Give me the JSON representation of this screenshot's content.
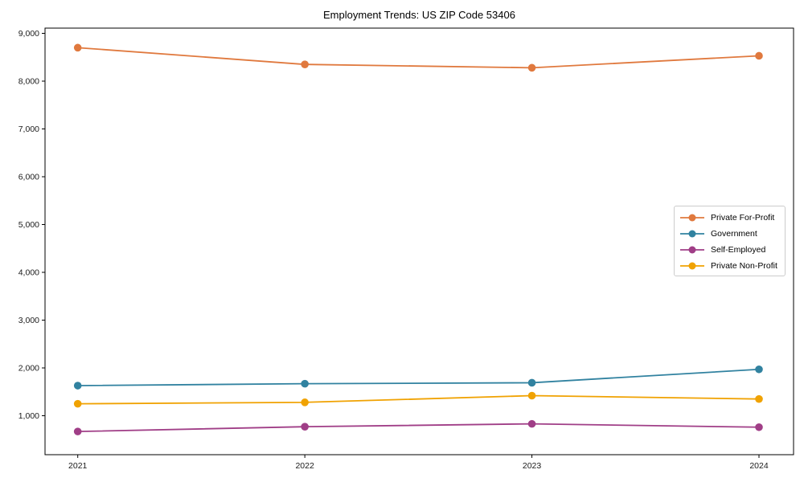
{
  "chart_data": {
    "type": "line",
    "title": "Employment Trends: US ZIP Code 53406",
    "xlabel": "",
    "ylabel": "",
    "x": [
      2021,
      2022,
      2023,
      2024
    ],
    "series": [
      {
        "name": "Private For-Profit",
        "color": "#e0793e",
        "values": [
          8700,
          8350,
          8280,
          8530
        ]
      },
      {
        "name": "Government",
        "color": "#3182a0",
        "values": [
          1630,
          1670,
          1690,
          1970
        ]
      },
      {
        "name": "Self-Employed",
        "color": "#a03e87",
        "values": [
          670,
          770,
          830,
          760
        ]
      },
      {
        "name": "Private Non-Profit",
        "color": "#f0a202",
        "values": [
          1250,
          1280,
          1420,
          1350
        ]
      }
    ],
    "yticks": [
      1000,
      2000,
      3000,
      4000,
      5000,
      6000,
      7000,
      8000,
      9000
    ],
    "xticks": [
      "2021",
      "2022",
      "2023",
      "2024"
    ],
    "ylim": [
      185,
      9110
    ],
    "grid": false,
    "marker": "circle",
    "legend_position": "center-right",
    "axis_color": "#000000",
    "tick_label_color": "#1a1a1a"
  }
}
